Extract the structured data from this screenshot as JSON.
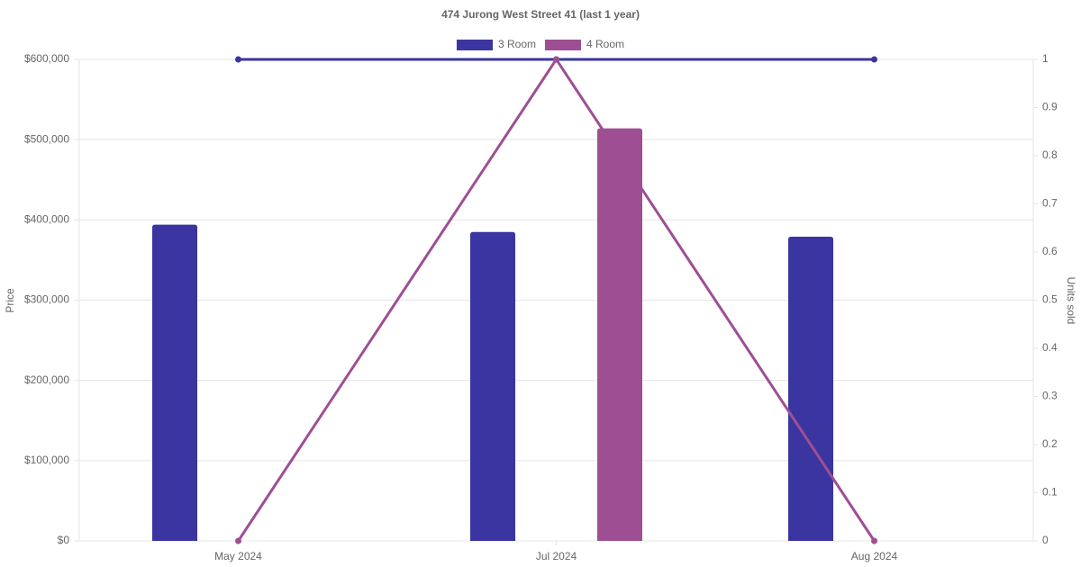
{
  "chart_data": {
    "type": "bar",
    "title": "474 Jurong West Street 41 (last 1 year)",
    "categories": [
      "May 2024",
      "Jul 2024",
      "Aug 2024"
    ],
    "series": [
      {
        "name": "3 Room",
        "color": "#3a35a0",
        "values": [
          394000,
          385000,
          379000
        ]
      },
      {
        "name": "4 Room",
        "color": "#9e4f93",
        "values": [
          null,
          514000,
          null
        ]
      },
      {
        "type": "line",
        "axis": "y2",
        "color": "#3a35a0",
        "values": [
          1,
          1,
          1
        ]
      },
      {
        "type": "line",
        "axis": "y2",
        "color": "#9e4f93",
        "values": [
          0,
          1,
          0
        ]
      }
    ],
    "ylabel": "Price",
    "y2label": "Units sold",
    "ylim": [
      0,
      600000
    ],
    "yticks": [
      {
        "value": 0,
        "label": "$0"
      },
      {
        "value": 100000,
        "label": "$100,000"
      },
      {
        "value": 200000,
        "label": "$200,000"
      },
      {
        "value": 300000,
        "label": "$300,000"
      },
      {
        "value": 400000,
        "label": "$400,000"
      },
      {
        "value": 500000,
        "label": "$500,000"
      },
      {
        "value": 600000,
        "label": "$600,000"
      }
    ],
    "y2lim": [
      0,
      1
    ],
    "y2ticks": [
      0,
      0.1,
      0.2,
      0.3,
      0.4,
      0.5,
      0.6,
      0.7,
      0.8,
      0.9,
      1
    ],
    "grid": true,
    "legend": "top"
  }
}
